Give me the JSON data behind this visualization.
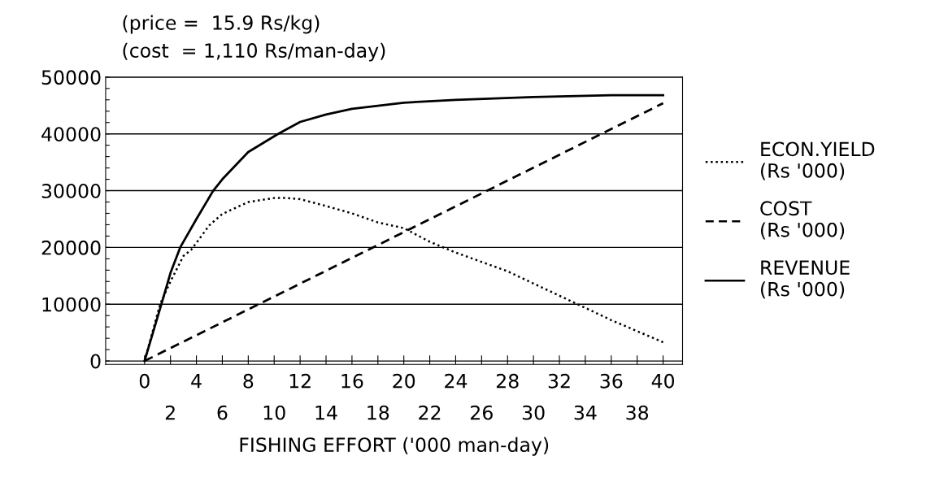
{
  "chart_data": {
    "type": "line",
    "title": "(price =  15.9 Rs/kg)",
    "subtitle": "(cost  = 1,110 Rs/man-day)",
    "xlabel": "FISHING EFFORT ('000 man-day)",
    "xlim": [
      -3,
      41.5
    ],
    "ylim": [
      -600,
      50000
    ],
    "xticks": [
      0,
      {
        "value": 2,
        "label": null
      },
      4,
      {
        "value": 6,
        "label": null
      },
      8,
      {
        "value": 10,
        "label": null
      },
      12,
      {
        "value": 14,
        "label": null
      },
      16,
      {
        "value": 18,
        "label": null
      },
      20,
      {
        "value": 22,
        "label": null
      },
      24,
      {
        "value": 26,
        "label": null
      },
      28,
      {
        "value": 30,
        "label": null
      },
      32,
      {
        "value": 34,
        "label": null
      },
      36,
      {
        "value": 38,
        "label": null
      },
      40
    ],
    "x2lim": [
      -3,
      41.5
    ],
    "x2ticks": [
      2,
      6,
      10,
      14,
      18,
      22,
      26,
      30,
      34,
      38
    ],
    "yticks": [
      0,
      {
        "value": 2000,
        "label": null
      },
      {
        "value": 4000,
        "label": null
      },
      {
        "value": 6000,
        "label": null
      },
      {
        "value": 8000,
        "label": null
      },
      10000,
      {
        "value": 12000,
        "label": null
      },
      {
        "value": 14000,
        "label": null
      },
      {
        "value": 16000,
        "label": null
      },
      {
        "value": 18000,
        "label": null
      },
      20000,
      {
        "value": 22000,
        "label": null
      },
      {
        "value": 24000,
        "label": null
      },
      {
        "value": 26000,
        "label": null
      },
      {
        "value": 28000,
        "label": null
      },
      30000,
      {
        "value": 32000,
        "label": null
      },
      {
        "value": 34000,
        "label": null
      },
      {
        "value": 36000,
        "label": null
      },
      {
        "value": 38000,
        "label": null
      },
      40000,
      {
        "value": 42000,
        "label": null
      },
      {
        "value": 44000,
        "label": null
      },
      {
        "value": 46000,
        "label": null
      },
      {
        "value": 48000,
        "label": null
      },
      50000
    ],
    "grid": "y",
    "legend": "right",
    "series": [
      {
        "name": "ECON.YIELD\n(Rs '000)",
        "color": "#000000",
        "line_style": "dotted",
        "x": [
          0,
          1.2,
          2,
          3,
          3.6,
          5,
          6,
          8,
          10,
          11,
          12,
          14,
          16,
          18,
          20,
          22,
          24,
          28,
          32,
          36,
          40
        ],
        "values": [
          0,
          10000,
          14000,
          18500,
          19600,
          23900,
          25900,
          28000,
          28700,
          28700,
          28500,
          27300,
          26000,
          24400,
          23400,
          21000,
          19100,
          15800,
          11500,
          7200,
          3300
        ]
      },
      {
        "name": "COST\n(Rs '000)",
        "color": "#000000",
        "line_style": "dashed",
        "x": [
          0,
          20,
          40
        ],
        "values": [
          0,
          22700,
          45400
        ]
      },
      {
        "name": "REVENUE\n(Rs '000)",
        "color": "#000000",
        "line_style": "solid",
        "x": [
          0,
          1.3,
          2,
          2.75,
          4,
          5.3,
          6,
          8,
          10.3,
          12,
          14,
          16,
          20,
          24,
          30,
          36,
          40
        ],
        "values": [
          0,
          10000,
          15500,
          20000,
          25000,
          30000,
          32000,
          36800,
          40000,
          42100,
          43400,
          44400,
          45500,
          46000,
          46500,
          46800,
          46800
        ]
      }
    ]
  }
}
